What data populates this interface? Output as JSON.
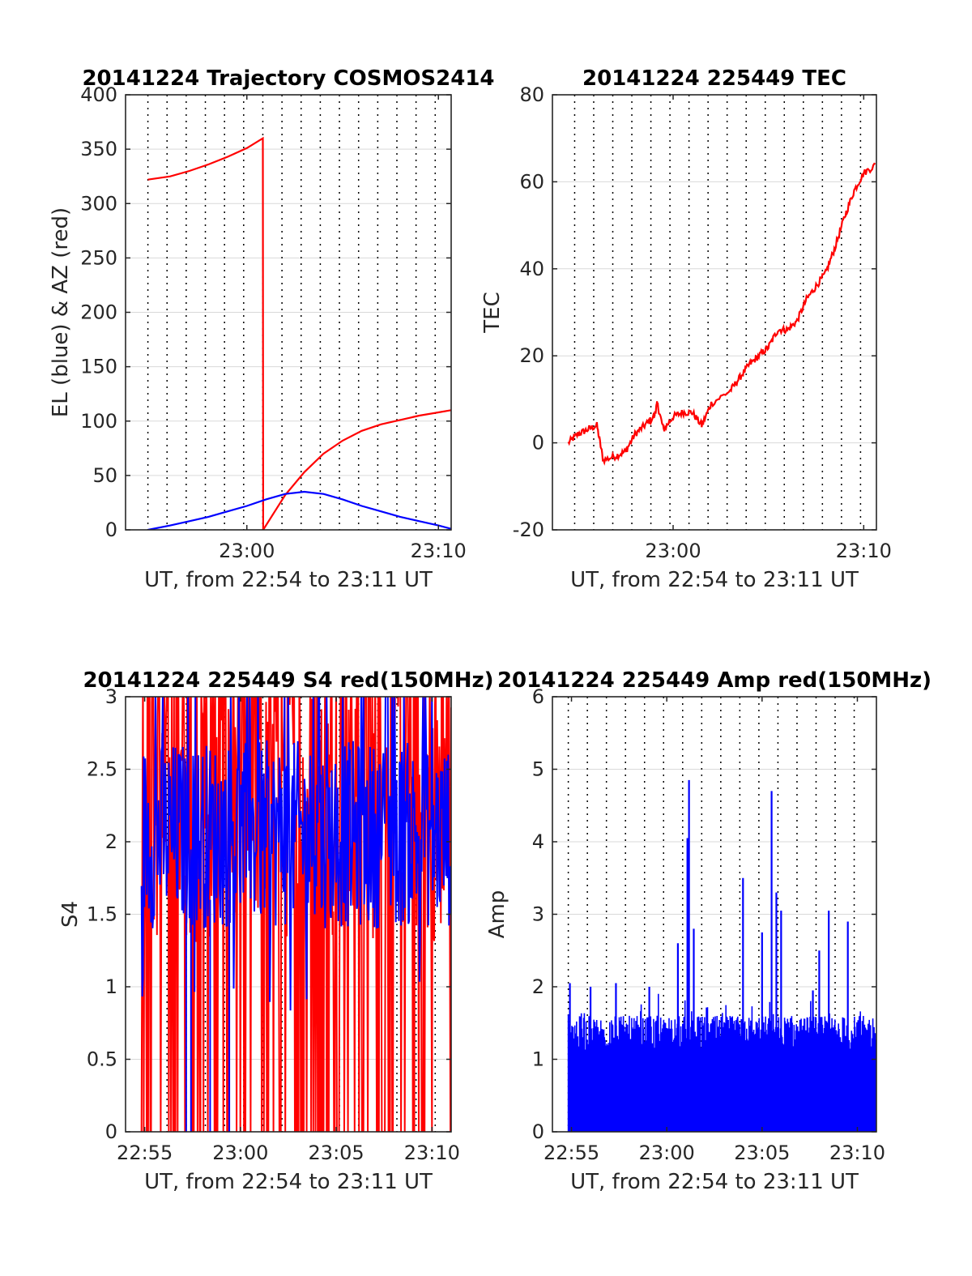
{
  "figure": {
    "background": "#ffffff",
    "colors": {
      "red": "#ff0000",
      "blue": "#0000ff",
      "frame": "#262626",
      "grid": "#d9d9d9",
      "dotted": "#000000"
    }
  },
  "chart_data": [
    {
      "id": "trajectory",
      "type": "line",
      "title": "20141224 Trajectory COSMOS2414",
      "xlabel": "UT, from 22:54 to 23:11 UT",
      "ylabel": "EL (blue) & AZ (red)",
      "xlim": [
        "22:53:40",
        "23:10:40"
      ],
      "ylim": [
        0,
        400
      ],
      "yticks": [
        0,
        50,
        100,
        150,
        200,
        250,
        300,
        350,
        400
      ],
      "xticks": [
        {
          "t": "23:00",
          "label": "23:00"
        },
        {
          "t": "23:10",
          "label": "23:10"
        }
      ],
      "dotted_time_lines": [
        "22:54:50",
        "22:55:50",
        "22:56:50",
        "22:57:50",
        "22:58:50",
        "22:59:50",
        "23:00:50",
        "23:01:50",
        "23:02:50",
        "23:03:50",
        "23:04:50",
        "23:05:50",
        "23:06:50",
        "23:07:50",
        "23:08:50",
        "23:09:50"
      ],
      "grid": true,
      "series": [
        {
          "color": "#ff0000",
          "x": [
            "22:54:50",
            "22:56:00",
            "22:57:00",
            "22:58:00",
            "22:59:00",
            "23:00:00",
            "23:00:50",
            "23:00:51",
            "23:01:30",
            "23:02:00",
            "23:03:00",
            "23:04:00",
            "23:05:00",
            "23:06:00",
            "23:07:00",
            "23:08:00",
            "23:09:00",
            "23:10:00",
            "23:10:40"
          ],
          "y": [
            322,
            325,
            330,
            336,
            343,
            351,
            360,
            0,
            18,
            32,
            53,
            70,
            82,
            91,
            97,
            101,
            105,
            108,
            110
          ]
        },
        {
          "color": "#0000ff",
          "x": [
            "22:54:50",
            "22:56:00",
            "22:57:00",
            "22:58:00",
            "22:59:00",
            "23:00:00",
            "23:01:00",
            "23:02:00",
            "23:03:00",
            "23:04:00",
            "23:05:00",
            "23:06:00",
            "23:07:00",
            "23:08:00",
            "23:09:00",
            "23:10:00",
            "23:10:40"
          ],
          "y": [
            0,
            4,
            8,
            12,
            17,
            22,
            28,
            33,
            35,
            33,
            28,
            22,
            17,
            12,
            8,
            4,
            1
          ]
        }
      ]
    },
    {
      "id": "tec",
      "type": "line",
      "title": "20141224 225449 TEC",
      "xlabel": "UT, from 22:54 to 23:11 UT",
      "ylabel": "TEC",
      "xlim": [
        "22:53:40",
        "23:10:40"
      ],
      "ylim": [
        -20,
        80
      ],
      "yticks": [
        -20,
        0,
        20,
        40,
        60,
        80
      ],
      "xticks": [
        {
          "t": "23:00",
          "label": "23:00"
        },
        {
          "t": "23:10",
          "label": "23:10"
        }
      ],
      "dotted_time_lines": [
        "22:54:50",
        "22:55:50",
        "22:56:50",
        "22:57:50",
        "22:58:50",
        "22:59:50",
        "23:00:50",
        "23:01:50",
        "23:02:50",
        "23:03:50",
        "23:04:50",
        "23:05:50",
        "23:06:50",
        "23:07:50",
        "23:08:50",
        "23:09:50"
      ],
      "grid": true,
      "series": [
        {
          "color": "#ff0000",
          "x": [
            "22:54:30",
            "22:55:00",
            "22:55:30",
            "22:56:00",
            "22:56:20",
            "22:57:00",
            "22:57:30",
            "22:58:00",
            "22:58:30",
            "22:59:00",
            "22:59:10",
            "22:59:30",
            "23:00:00",
            "23:00:30",
            "23:01:00",
            "23:01:30",
            "23:02:00",
            "23:03:00",
            "23:03:30",
            "23:04:00",
            "23:04:30",
            "23:05:00",
            "23:05:30",
            "23:06:00",
            "23:06:30",
            "23:07:00",
            "23:07:30",
            "23:08:00",
            "23:08:30",
            "23:09:00",
            "23:09:30",
            "23:10:00",
            "23:10:40"
          ],
          "y": [
            0,
            2,
            3,
            4,
            -4,
            -3,
            -2,
            2,
            4,
            6,
            9,
            3,
            6,
            7,
            7,
            4,
            9,
            12,
            15,
            18,
            20,
            22,
            26,
            26,
            28,
            33,
            36,
            39,
            45,
            52,
            58,
            62,
            64
          ]
        }
      ]
    },
    {
      "id": "s4",
      "type": "line",
      "title": "20141224 225449 S4 red(150MHz)",
      "xlabel": "UT, from 22:54 to 23:11 UT",
      "ylabel": "S4",
      "xlim": [
        "22:54:00",
        "23:11:00"
      ],
      "ylim": [
        0,
        3
      ],
      "yticks": [
        0,
        0.5,
        1,
        1.5,
        2,
        2.5,
        3
      ],
      "xticks": [
        {
          "t": "22:55",
          "label": "22:55"
        },
        {
          "t": "23:00",
          "label": "23:00"
        },
        {
          "t": "23:05",
          "label": "23:05"
        },
        {
          "t": "23:10",
          "label": "23:10"
        }
      ],
      "dotted_time_lines": [
        "22:55:10",
        "22:56:10",
        "22:57:10",
        "22:58:10",
        "22:59:10",
        "23:00:10",
        "23:01:10",
        "23:02:10",
        "23:03:10",
        "23:04:10",
        "23:05:10",
        "23:06:10",
        "23:07:10",
        "23:08:10",
        "23:09:10",
        "23:10:10"
      ],
      "grid": true,
      "series": [
        {
          "color": "#ff0000",
          "x_range": [
            "22:54:50",
            "23:11:00"
          ],
          "y_range": [
            0,
            3
          ],
          "note_dense": "noisy"
        },
        {
          "color": "#0000ff",
          "x_range": [
            "22:54:50",
            "23:11:00"
          ],
          "y_range": [
            0.75,
            3
          ],
          "y_typical": [
            1.4,
            2.7
          ]
        }
      ]
    },
    {
      "id": "amp",
      "type": "bar",
      "title": "20141224 225449 Amp red(150MHz)",
      "xlabel": "UT, from 22:54 to 23:11 UT",
      "ylabel": "Amp",
      "xlim": [
        "22:54:00",
        "23:11:00"
      ],
      "ylim": [
        0,
        6
      ],
      "yticks": [
        0,
        1,
        2,
        3,
        4,
        5,
        6
      ],
      "xticks": [
        {
          "t": "22:55",
          "label": "22:55"
        },
        {
          "t": "23:00",
          "label": "23:00"
        },
        {
          "t": "23:05",
          "label": "23:05"
        },
        {
          "t": "23:10",
          "label": "23:10"
        }
      ],
      "dotted_time_lines": [
        "22:54:50",
        "22:55:50",
        "22:56:50",
        "22:57:50",
        "22:58:50",
        "22:59:50",
        "23:00:50",
        "23:01:50",
        "23:02:50",
        "23:03:50",
        "23:04:50",
        "23:05:50",
        "23:06:50",
        "23:07:50",
        "23:08:50",
        "23:09:50"
      ],
      "grid": true,
      "series": [
        {
          "color": "#0000ff",
          "x_range": [
            "22:54:50",
            "23:11:00"
          ],
          "baseline_max": 1.6,
          "peaks": [
            {
              "t": "22:54:55",
              "v": 2.05
            },
            {
              "t": "22:56:00",
              "v": 2.0
            },
            {
              "t": "22:57:20",
              "v": 2.05
            },
            {
              "t": "22:59:05",
              "v": 2.0
            },
            {
              "t": "23:00:35",
              "v": 2.6
            },
            {
              "t": "23:01:05",
              "v": 4.05
            },
            {
              "t": "23:01:10",
              "v": 4.85
            },
            {
              "t": "23:01:25",
              "v": 2.8
            },
            {
              "t": "23:04:00",
              "v": 3.5
            },
            {
              "t": "23:05:00",
              "v": 2.75
            },
            {
              "t": "23:05:30",
              "v": 4.7
            },
            {
              "t": "23:05:45",
              "v": 3.3
            },
            {
              "t": "23:06:00",
              "v": 3.05
            },
            {
              "t": "23:08:30",
              "v": 3.05
            },
            {
              "t": "23:09:30",
              "v": 2.9
            },
            {
              "t": "23:07:40",
              "v": 1.95
            },
            {
              "t": "23:08:00",
              "v": 2.5
            }
          ]
        }
      ]
    }
  ]
}
